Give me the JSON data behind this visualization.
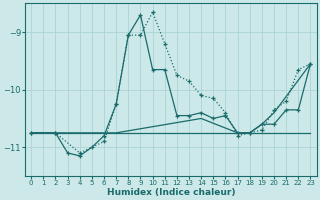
{
  "xlabel": "Humidex (Indice chaleur)",
  "bg_color": "#cce8e8",
  "grid_color": "#aad4d4",
  "line_color": "#1a6b6b",
  "xlim": [
    -0.5,
    23.5
  ],
  "ylim": [
    -11.5,
    -8.5
  ],
  "yticks": [
    -11,
    -10,
    -9
  ],
  "xticks": [
    0,
    1,
    2,
    3,
    4,
    5,
    6,
    7,
    8,
    9,
    10,
    11,
    12,
    13,
    14,
    15,
    16,
    17,
    18,
    19,
    20,
    21,
    22,
    23
  ],
  "lines": [
    {
      "x": [
        0,
        2,
        4,
        6,
        7,
        8,
        9,
        10,
        11,
        12,
        13,
        14,
        15,
        16,
        17,
        18,
        19,
        20,
        21,
        22,
        23
      ],
      "y": [
        -10.75,
        -10.75,
        -11.1,
        -10.9,
        -10.25,
        -9.05,
        -9.05,
        -8.65,
        -9.2,
        -9.75,
        -9.85,
        -10.1,
        -10.15,
        -10.4,
        -10.8,
        -10.75,
        -10.7,
        -10.35,
        -10.2,
        -9.65,
        -9.55
      ],
      "linestyle": "dotted",
      "marker": true
    },
    {
      "x": [
        0,
        2,
        3,
        4,
        5,
        6,
        7,
        8,
        9,
        10,
        11,
        12,
        13,
        14,
        15,
        16,
        17,
        18,
        19,
        20,
        21,
        22,
        23
      ],
      "y": [
        -10.75,
        -10.75,
        -11.1,
        -11.15,
        -11.0,
        -10.8,
        -10.25,
        -9.05,
        -8.7,
        -9.65,
        -9.65,
        -10.45,
        -10.45,
        -10.4,
        -10.5,
        -10.45,
        -10.75,
        -10.75,
        -10.6,
        -10.6,
        -10.35,
        -10.35,
        -9.55
      ],
      "linestyle": "solid",
      "marker": true
    },
    {
      "x": [
        0,
        7,
        23
      ],
      "y": [
        -10.75,
        -10.75,
        -10.75
      ],
      "linestyle": "solid",
      "marker": false
    },
    {
      "x": [
        0,
        7,
        14,
        17,
        18,
        19,
        20,
        23
      ],
      "y": [
        -10.75,
        -10.75,
        -10.5,
        -10.75,
        -10.75,
        -10.6,
        -10.4,
        -9.55
      ],
      "linestyle": "solid",
      "marker": false
    }
  ]
}
